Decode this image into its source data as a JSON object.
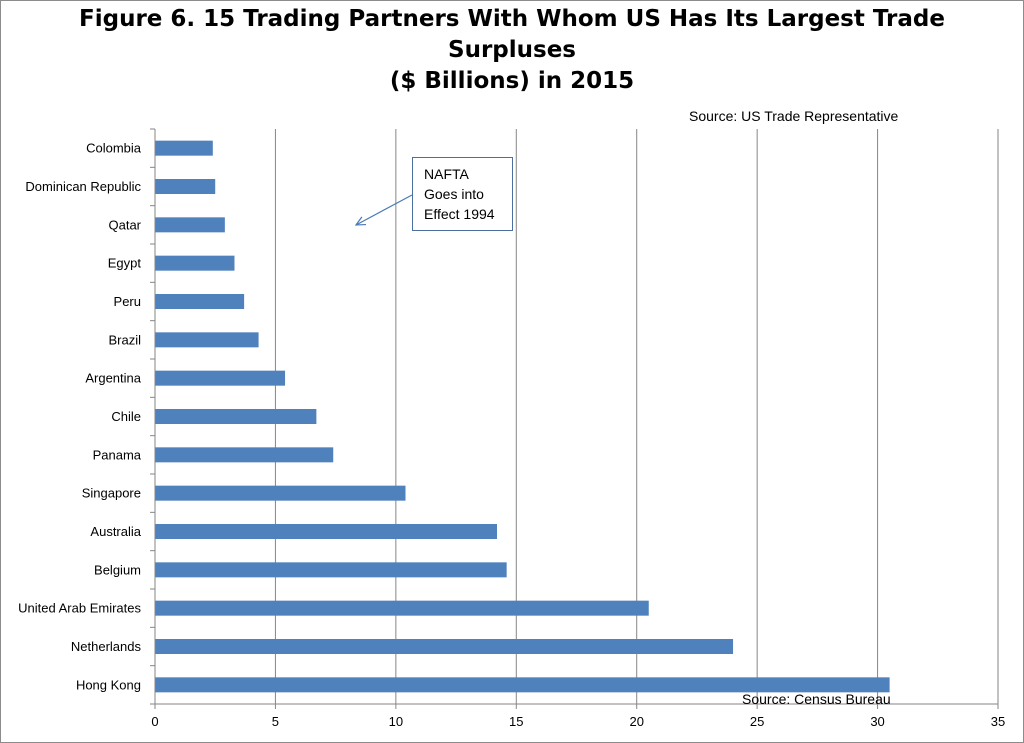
{
  "title_lines": [
    "Figure 6. 15 Trading Partners With Whom US Has Its Largest Trade",
    "Surpluses",
    "($ Billions) in 2015"
  ],
  "sources": {
    "top": "Source: US Trade Representative",
    "bottom": "Source: Census Bureau"
  },
  "annotation": {
    "lines": [
      "NAFTA",
      "Goes into",
      "Effect 1994"
    ]
  },
  "colors": {
    "bar": "#4f81bd",
    "grid": "#868686",
    "annotation_border": "#4a6fa0",
    "arrow": "#4a7ab5"
  },
  "chart_data": {
    "type": "bar",
    "orientation": "horizontal",
    "title": "Figure 6. 15 Trading Partners With Whom US Has Its Largest Trade Surpluses ($ Billions) in 2015",
    "categories": [
      "Colombia",
      "Dominican Republic",
      "Qatar",
      "Egypt",
      "Peru",
      "Brazil",
      "Argentina",
      "Chile",
      "Panama",
      "Singapore",
      "Australia",
      "Belgium",
      "United Arab Emirates",
      "Netherlands",
      "Hong Kong"
    ],
    "values": [
      2.4,
      2.5,
      2.9,
      3.3,
      3.7,
      4.3,
      5.4,
      6.7,
      7.4,
      10.4,
      14.2,
      14.6,
      20.5,
      24.0,
      30.5
    ],
    "xlim": [
      0,
      35
    ],
    "x_ticks": [
      0,
      5,
      10,
      15,
      20,
      25,
      30,
      35
    ],
    "xlabel": "",
    "ylabel": "",
    "grid": "vertical major gridlines",
    "legend": "none"
  }
}
